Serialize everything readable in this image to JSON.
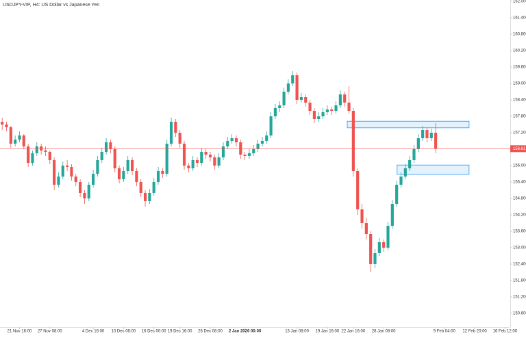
{
  "chart_data": {
    "type": "candlestick",
    "title": "USDJPY-VIP, H4: US Dollar vs Japanese Yen",
    "up_color": "#26a69a",
    "down_color": "#ef5350",
    "candles": [
      [
        157.6,
        157.75,
        157.3,
        157.5
      ],
      [
        157.5,
        157.6,
        157.25,
        157.4
      ],
      [
        157.4,
        157.45,
        156.65,
        156.8
      ],
      [
        156.8,
        157.1,
        156.7,
        156.95
      ],
      [
        156.95,
        157.25,
        156.85,
        157.1
      ],
      [
        157.1,
        157.15,
        156.6,
        156.7
      ],
      [
        156.7,
        156.8,
        155.95,
        156.1
      ],
      [
        156.1,
        156.55,
        156.0,
        156.45
      ],
      [
        156.45,
        156.85,
        156.35,
        156.7
      ],
      [
        156.7,
        156.8,
        156.4,
        156.55
      ],
      [
        156.55,
        156.7,
        156.35,
        156.5
      ],
      [
        156.5,
        156.55,
        156.05,
        156.2
      ],
      [
        156.2,
        156.3,
        155.1,
        155.3
      ],
      [
        155.3,
        155.75,
        155.2,
        155.6
      ],
      [
        155.6,
        156.15,
        155.5,
        156.0
      ],
      [
        156.0,
        156.2,
        155.8,
        155.95
      ],
      [
        155.95,
        156.05,
        155.45,
        155.6
      ],
      [
        155.6,
        155.7,
        155.25,
        155.4
      ],
      [
        155.4,
        155.5,
        154.85,
        155.0
      ],
      [
        155.0,
        155.1,
        154.6,
        154.8
      ],
      [
        154.8,
        155.4,
        154.7,
        155.3
      ],
      [
        155.3,
        155.85,
        155.2,
        155.7
      ],
      [
        155.7,
        156.35,
        155.6,
        156.2
      ],
      [
        156.2,
        156.65,
        156.1,
        156.5
      ],
      [
        156.5,
        157.0,
        156.4,
        156.85
      ],
      [
        156.85,
        156.95,
        156.45,
        156.6
      ],
      [
        156.6,
        156.7,
        155.75,
        155.9
      ],
      [
        155.9,
        156.0,
        155.35,
        155.5
      ],
      [
        155.5,
        155.95,
        155.4,
        155.8
      ],
      [
        155.8,
        156.35,
        155.7,
        156.2
      ],
      [
        156.2,
        156.3,
        155.65,
        155.8
      ],
      [
        155.8,
        155.9,
        155.25,
        155.4
      ],
      [
        155.4,
        155.5,
        154.85,
        155.0
      ],
      [
        155.0,
        155.1,
        154.5,
        154.7
      ],
      [
        154.7,
        155.15,
        154.6,
        155.0
      ],
      [
        155.0,
        155.55,
        154.9,
        155.4
      ],
      [
        155.4,
        155.95,
        155.3,
        155.8
      ],
      [
        155.8,
        155.9,
        155.55,
        155.7
      ],
      [
        155.7,
        156.95,
        155.6,
        156.8
      ],
      [
        156.8,
        157.75,
        156.7,
        157.6
      ],
      [
        157.6,
        157.7,
        157.05,
        157.2
      ],
      [
        157.2,
        157.3,
        156.65,
        156.8
      ],
      [
        156.8,
        156.9,
        155.85,
        156.0
      ],
      [
        156.0,
        156.1,
        155.75,
        155.9
      ],
      [
        155.9,
        156.35,
        155.8,
        156.2
      ],
      [
        156.2,
        156.3,
        155.95,
        156.1
      ],
      [
        156.1,
        156.65,
        156.0,
        156.5
      ],
      [
        156.5,
        156.6,
        156.25,
        156.4
      ],
      [
        156.4,
        156.5,
        156.15,
        156.3
      ],
      [
        156.3,
        156.4,
        155.85,
        156.0
      ],
      [
        156.0,
        156.45,
        155.9,
        156.3
      ],
      [
        156.3,
        156.85,
        156.2,
        156.7
      ],
      [
        156.7,
        157.05,
        156.6,
        156.9
      ],
      [
        156.9,
        157.15,
        156.8,
        157.0
      ],
      [
        157.0,
        157.1,
        156.7,
        156.85
      ],
      [
        156.85,
        156.95,
        156.25,
        156.4
      ],
      [
        156.4,
        156.5,
        156.2,
        156.35
      ],
      [
        156.35,
        156.6,
        156.25,
        156.45
      ],
      [
        156.45,
        156.75,
        156.35,
        156.6
      ],
      [
        156.6,
        156.95,
        156.5,
        156.8
      ],
      [
        156.8,
        157.05,
        156.7,
        156.9
      ],
      [
        156.9,
        157.25,
        156.8,
        157.1
      ],
      [
        157.1,
        157.95,
        157.0,
        157.8
      ],
      [
        157.8,
        158.25,
        157.7,
        158.1
      ],
      [
        158.1,
        158.35,
        157.95,
        158.2
      ],
      [
        158.2,
        158.85,
        158.1,
        158.7
      ],
      [
        158.7,
        159.15,
        158.6,
        159.0
      ],
      [
        159.0,
        159.45,
        158.9,
        159.3
      ],
      [
        159.3,
        159.4,
        158.25,
        158.4
      ],
      [
        158.4,
        158.65,
        158.3,
        158.5
      ],
      [
        158.5,
        158.6,
        158.15,
        158.3
      ],
      [
        158.3,
        158.4,
        157.85,
        158.0
      ],
      [
        158.0,
        158.1,
        157.55,
        157.7
      ],
      [
        157.7,
        157.95,
        157.6,
        157.8
      ],
      [
        157.8,
        158.1,
        157.7,
        157.95
      ],
      [
        157.95,
        158.2,
        157.85,
        158.05
      ],
      [
        158.05,
        158.15,
        157.85,
        158.0
      ],
      [
        158.0,
        158.35,
        157.9,
        158.2
      ],
      [
        158.2,
        158.75,
        158.1,
        158.6
      ],
      [
        158.6,
        158.7,
        158.15,
        158.3
      ],
      [
        158.3,
        158.9,
        157.9,
        158.0
      ],
      [
        158.0,
        158.1,
        155.6,
        155.8
      ],
      [
        155.8,
        155.9,
        154.2,
        154.4
      ],
      [
        154.4,
        154.6,
        153.7,
        153.9
      ],
      [
        153.9,
        154.1,
        153.3,
        153.5
      ],
      [
        153.5,
        153.6,
        152.1,
        152.4
      ],
      [
        152.4,
        152.95,
        152.25,
        152.8
      ],
      [
        152.8,
        153.35,
        152.7,
        153.2
      ],
      [
        153.2,
        153.3,
        152.85,
        153.0
      ],
      [
        153.0,
        153.95,
        152.9,
        153.8
      ],
      [
        153.8,
        154.75,
        153.7,
        154.6
      ],
      [
        154.6,
        155.45,
        154.5,
        155.3
      ],
      [
        155.3,
        155.75,
        155.2,
        155.6
      ],
      [
        155.6,
        156.05,
        155.5,
        155.9
      ],
      [
        155.9,
        156.35,
        155.8,
        156.2
      ],
      [
        156.2,
        156.75,
        156.1,
        156.6
      ],
      [
        156.6,
        157.15,
        156.5,
        157.0
      ],
      [
        157.0,
        157.45,
        156.9,
        157.3
      ],
      [
        157.3,
        157.4,
        156.85,
        157.0
      ],
      [
        157.0,
        157.35,
        156.9,
        157.2
      ],
      [
        157.2,
        157.55,
        156.45,
        156.617
      ]
    ],
    "last_price": 156.617,
    "last_price_color": "#ef5350",
    "zones": [
      {
        "x": [
          79.6,
          107.7
        ],
        "y": [
          157.38,
          157.62
        ]
      },
      {
        "x": [
          91.1,
          107.7
        ],
        "y": [
          155.68,
          156.02
        ]
      }
    ],
    "zone_color": "#2196f3",
    "xlim": [
      -0.5,
      117.2
    ],
    "xticks": [
      {
        "value": 4,
        "label": "21 Nov 16:00"
      },
      {
        "value": 11,
        "label": "27 Nov 08:00"
      },
      {
        "value": 21,
        "label": "4 Dec 16:00"
      },
      {
        "value": 28,
        "label": "10 Dec 08:00"
      },
      {
        "value": 35,
        "label": "16 Dec 00:00"
      },
      {
        "value": 41,
        "label": "19 Dec 16:00"
      },
      {
        "value": 48,
        "label": "26 Dec 08:00"
      },
      {
        "value": 56,
        "label": "2 Jan 2026 00:00",
        "bold": true
      },
      {
        "value": 68,
        "label": "13 Jan 08:00"
      },
      {
        "value": 75,
        "label": "19 Jan 16:00"
      },
      {
        "value": 81,
        "label": "22 Jan 16:00"
      },
      {
        "value": 88,
        "label": "28 Jan 08:00"
      },
      {
        "value": 102,
        "label": "9 Feb 04:00"
      },
      {
        "value": 109,
        "label": "12 Feb 20:00"
      },
      {
        "value": 116,
        "label": "16 Feb 12:00"
      }
    ],
    "ylim": [
      150.1,
      162.05
    ],
    "yticks": [
      {
        "value": 150.6,
        "label": "150.600"
      },
      {
        "value": 151.2,
        "label": "151.200"
      },
      {
        "value": 151.8,
        "label": "151.800"
      },
      {
        "value": 152.4,
        "label": "152.400"
      },
      {
        "value": 153.0,
        "label": "153.000"
      },
      {
        "value": 153.6,
        "label": "153.600"
      },
      {
        "value": 154.2,
        "label": "154.200"
      },
      {
        "value": 154.8,
        "label": "154.800"
      },
      {
        "value": 155.4,
        "label": "155.400"
      },
      {
        "value": 156.0,
        "label": "156.000"
      },
      {
        "value": 157.2,
        "label": "157.200"
      },
      {
        "value": 157.8,
        "label": "157.800"
      },
      {
        "value": 158.4,
        "label": "158.400"
      },
      {
        "value": 159.0,
        "label": "159.000"
      },
      {
        "value": 159.6,
        "label": "159.600"
      },
      {
        "value": 160.2,
        "label": "160.200"
      },
      {
        "value": 160.8,
        "label": "160.800"
      },
      {
        "value": 161.4,
        "label": "161.400"
      },
      {
        "value": 162.0,
        "label": "162.000"
      }
    ],
    "grid": false
  }
}
